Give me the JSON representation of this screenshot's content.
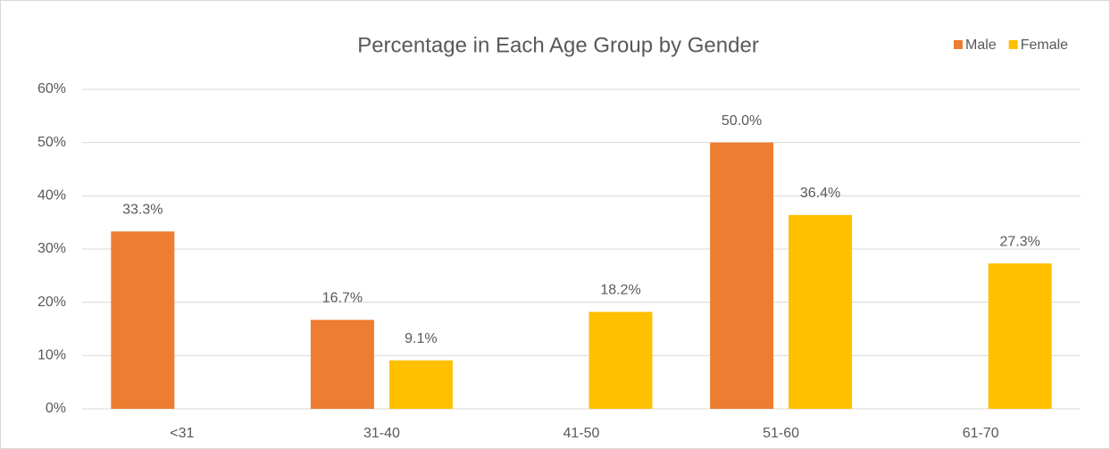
{
  "chart_data": {
    "type": "bar",
    "title": "Percentage in Each Age Group by Gender",
    "categories": [
      "<31",
      "31-40",
      "41-50",
      "51-60",
      "61-70"
    ],
    "series": [
      {
        "name": "Male",
        "color": "#ed7d31",
        "values": [
          33.3,
          16.7,
          null,
          50.0,
          null
        ],
        "value_labels": [
          "33.3%",
          "16.7%",
          null,
          "50.0%",
          null
        ]
      },
      {
        "name": "Female",
        "color": "#ffc000",
        "values": [
          null,
          9.1,
          18.2,
          36.4,
          27.3
        ],
        "value_labels": [
          null,
          "9.1%",
          "18.2%",
          "36.4%",
          "27.3%"
        ]
      }
    ],
    "ylim": [
      0,
      60
    ],
    "yticks": [
      {
        "value": 0,
        "label": "0%"
      },
      {
        "value": 10,
        "label": "10%"
      },
      {
        "value": 20,
        "label": "20%"
      },
      {
        "value": 30,
        "label": "30%"
      },
      {
        "value": 40,
        "label": "40%"
      },
      {
        "value": 50,
        "label": "50%"
      },
      {
        "value": 60,
        "label": "60%"
      }
    ],
    "grid": true,
    "legend": "top-right"
  }
}
